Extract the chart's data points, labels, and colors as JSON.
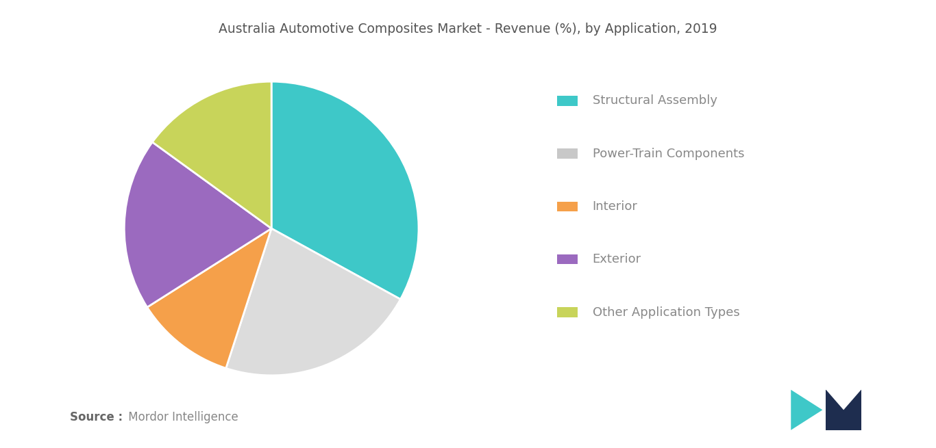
{
  "title": "Australia Automotive Composites Market - Revenue (%), by Application, 2019",
  "labels": [
    "Structural Assembly",
    "Power-Train Components",
    "Interior",
    "Exterior",
    "Other Application Types"
  ],
  "values": [
    33,
    22,
    11,
    19,
    15
  ],
  "colors": [
    "#3ec8c8",
    "#dcdcdc",
    "#f5a04a",
    "#9b6abf",
    "#c8d45a"
  ],
  "legend_colors": [
    "#3ec8c8",
    "#c8c8c8",
    "#f5a04a",
    "#9b6abf",
    "#c8d45a"
  ],
  "source_bold": "Source :",
  "source_regular": " Mordor Intelligence",
  "background_color": "#ffffff",
  "title_fontsize": 13.5,
  "legend_fontsize": 13,
  "source_fontsize": 12,
  "startangle": 90
}
